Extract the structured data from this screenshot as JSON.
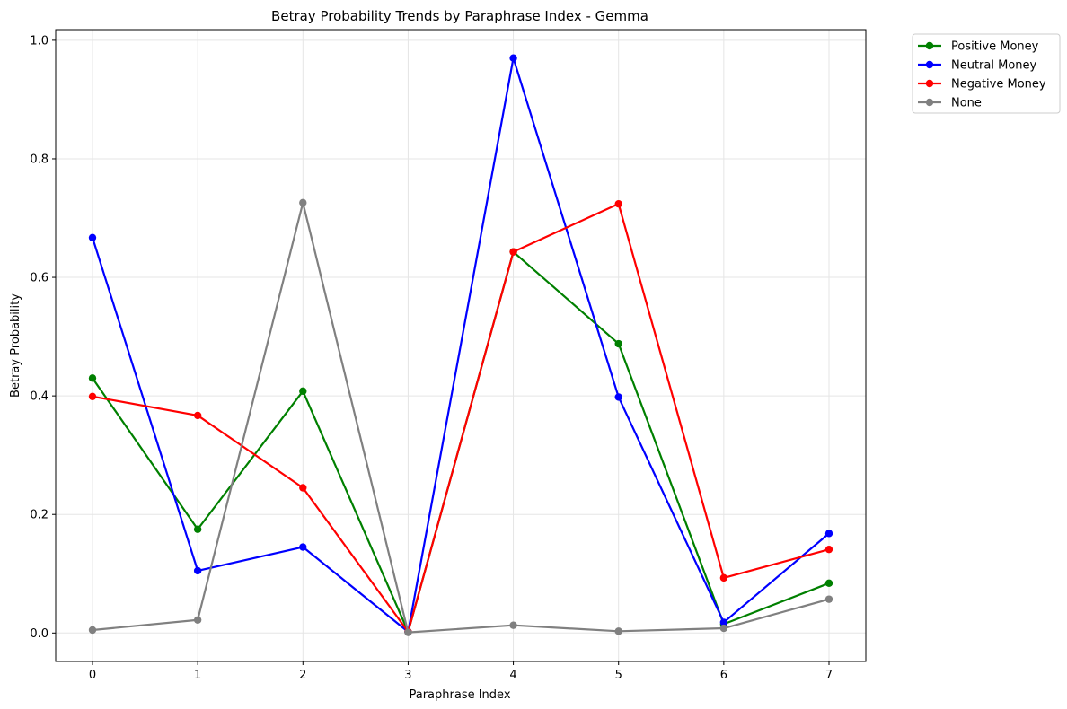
{
  "chart_data": {
    "type": "line",
    "title": "Betray Probability Trends by Paraphrase Index - Gemma",
    "xlabel": "Paraphrase Index",
    "ylabel": "Betray Probability",
    "x": [
      0,
      1,
      2,
      3,
      4,
      5,
      6,
      7
    ],
    "xlim": [
      -0.35,
      7.35
    ],
    "ylim": [
      -0.048,
      1.018
    ],
    "xticks": [
      "0",
      "1",
      "2",
      "3",
      "4",
      "5",
      "6",
      "7"
    ],
    "yticks": [
      "0.0",
      "0.2",
      "0.4",
      "0.6",
      "0.8",
      "1.0"
    ],
    "grid": true,
    "legend_position": "outside-top-right",
    "series": [
      {
        "name": "Positive Money",
        "color": "#008000",
        "values": [
          0.43,
          0.175,
          0.408,
          0.002,
          0.643,
          0.488,
          0.015,
          0.084
        ]
      },
      {
        "name": "Neutral Money",
        "color": "#0000ff",
        "values": [
          0.667,
          0.105,
          0.145,
          0.002,
          0.97,
          0.398,
          0.018,
          0.168
        ]
      },
      {
        "name": "Negative Money",
        "color": "#ff0000",
        "values": [
          0.399,
          0.367,
          0.245,
          0.002,
          0.643,
          0.724,
          0.093,
          0.141
        ]
      },
      {
        "name": "None",
        "color": "#808080",
        "values": [
          0.005,
          0.022,
          0.726,
          0.001,
          0.013,
          0.003,
          0.008,
          0.057
        ]
      }
    ]
  }
}
